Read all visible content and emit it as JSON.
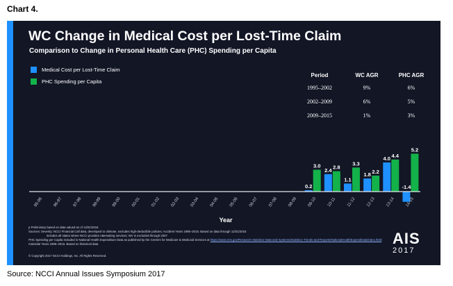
{
  "document": {
    "title": "Chart 4.",
    "source": "Source: NCCI Annual Issues Symposium 2017"
  },
  "slide": {
    "title": "WC Change in Medical Cost per Lost-Time Claim",
    "subtitle": "Comparison to Change in Personal Health Care (PHC) Spending per Capita",
    "accent_color": "#1e90ff",
    "background_color": "#121625",
    "notes": [
      "p Preliminary based on data valued as of 12/31/2016",
      "Sources: Severity: NCCI Financial Call data, developed to ultimate, excludes high-deductible policies; Accident Years 1995–2015. Based on data through 12/31/2015",
      "includes all states where NCCI provides ratemaking services; WV is excluded through 2007",
      "PHC Spending per Capita included in National Health Expenditure Data as published by the Centers for Medicare & Medicaid Services at",
      "https://www.cms.gov/Research-Statistics-Data-and-Systems/Statistics-Trends-and-Reports/NationalHealthExpendData/index.html",
      "; Calendar Years 1995–2015. Based on historical data"
    ],
    "copyright": "© Copyright 2017 NCCI Holdings, Inc. All Rights Reserved.",
    "logo": {
      "name": "AIS",
      "year": "2017"
    }
  },
  "agr_table": {
    "headers": [
      "Period",
      "WC AGR",
      "PHC AGR"
    ],
    "rows": [
      [
        "1995–2002",
        "9%",
        "6%"
      ],
      [
        "2002–2009",
        "6%",
        "5%"
      ],
      [
        "2009–2015",
        "1%",
        "3%"
      ]
    ]
  },
  "chart_data": {
    "type": "bar",
    "title": "WC Change in Medical Cost per Lost-Time Claim",
    "subtitle": "Comparison to Change in Personal Health Care (PHC) Spending per Capita",
    "xlabel": "Year",
    "ylabel": "",
    "legend_position": "top-left",
    "grid": false,
    "categories": [
      "95-96",
      "96-97",
      "97-98",
      "98-99",
      "99-00",
      "00-01",
      "01-02",
      "02-03",
      "03-04",
      "04-05",
      "05-06",
      "06-07",
      "07-08",
      "08-09",
      "09-10",
      "10-11",
      "11-12",
      "12-13",
      "13-14",
      "14-15"
    ],
    "series": [
      {
        "name": "Medical Cost per Lost-Time Claim",
        "color": "#1e90ff",
        "values": [
          null,
          null,
          null,
          null,
          null,
          null,
          null,
          null,
          null,
          null,
          null,
          null,
          null,
          null,
          0.2,
          2.4,
          1.1,
          1.8,
          4.0,
          -1.4
        ]
      },
      {
        "name": "PHC Spending per Capita",
        "color": "#13b24a",
        "values": [
          null,
          null,
          null,
          null,
          null,
          null,
          null,
          null,
          null,
          null,
          null,
          null,
          null,
          null,
          3.0,
          2.8,
          3.3,
          2.2,
          4.4,
          5.2
        ]
      }
    ],
    "data_labels": {
      "series0": [
        "",
        "",
        "",
        "",
        "",
        "",
        "",
        "",
        "",
        "",
        "",
        "",
        "",
        "",
        "0.2",
        "2.4",
        "1.1",
        "1.8",
        "4.0",
        "-1.4"
      ],
      "series1": [
        "",
        "",
        "",
        "",
        "",
        "",
        "",
        "",
        "",
        "",
        "",
        "",
        "",
        "",
        "3.0",
        "2.8",
        "3.3",
        "2.2",
        "4.4",
        "5.2"
      ]
    }
  }
}
